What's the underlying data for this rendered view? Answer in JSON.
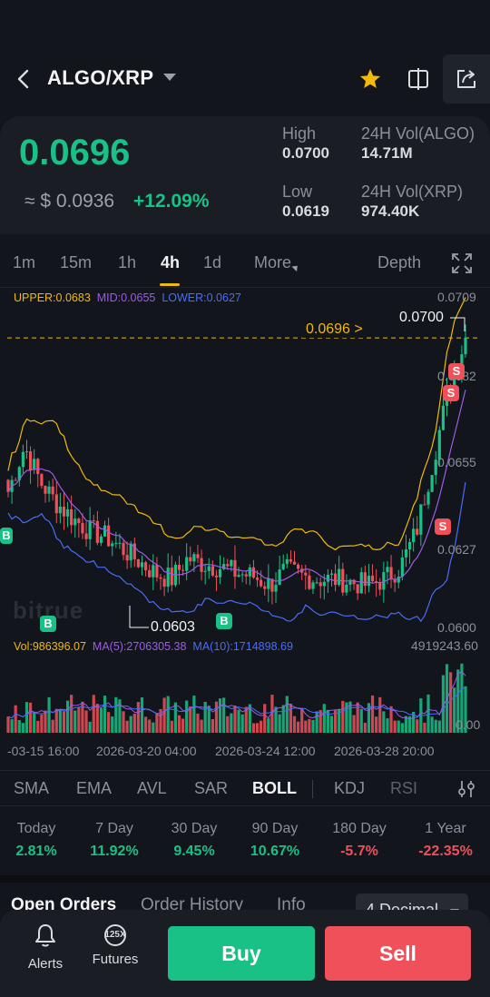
{
  "header": {
    "pair": "ALGO/XRP",
    "icons": [
      "back-arrow-icon",
      "chevron-down-icon",
      "star-icon",
      "compare-icon",
      "share-icon"
    ],
    "favorite_color": "#f0b90b"
  },
  "ticker": {
    "last_price": "0.0696",
    "usd_price": "≈ $ 0.0936",
    "change": "+12.09%",
    "high_label": "High",
    "high_value": "0.0700",
    "low_label": "Low",
    "low_value": "0.0619",
    "vol_base_label": "24H Vol(ALGO)",
    "vol_base_value": "14.71M",
    "vol_quote_label": "24H Vol(XRP)",
    "vol_quote_value": "974.40K",
    "up_color": "#19c187",
    "down_color": "#f0505a"
  },
  "timeframes": {
    "items": [
      "1m",
      "15m",
      "1h",
      "4h",
      "1d"
    ],
    "active": "4h",
    "more": "More",
    "depth": "Depth"
  },
  "chart": {
    "boll_upper": "UPPER:0.0683",
    "boll_mid": "MID:0.0655",
    "boll_lower": "LOWER:0.0627",
    "price_axis": [
      "0.0709",
      "0.0682",
      "0.0655",
      "0.0627",
      "0.0600"
    ],
    "current_price_tag": "0.0696 >",
    "high_marker": "0.0700",
    "low_marker": "0.0603",
    "vol_label": "Vol:986396.07",
    "ma5_label": "MA(5):2706305.38",
    "ma10_label": "MA(10):1714898.69",
    "vol_axis_top": "4919243.60",
    "vol_axis_bottom": "0.00",
    "time_axis": [
      "-03-15 16:00",
      "2026-03-20 04:00",
      "2026-03-24 12:00",
      "2026-03-28 20:00"
    ],
    "watermark": "bitrue",
    "buy_marker": "B",
    "sell_marker": "S",
    "colors": {
      "upper": "#f0b90b",
      "mid": "#9b5de5",
      "lower": "#4a6cf7",
      "ma5": "#9b5de5",
      "ma10": "#4a6cf7"
    }
  },
  "chart_data": {
    "type": "candlestick",
    "x": [
      "2026-03-15 16:00",
      "2026-03-20 04:00",
      "2026-03-24 12:00",
      "2026-03-28 20:00"
    ],
    "ylim": [
      0.06,
      0.0709
    ],
    "close_series": [
      0.0645,
      0.066,
      0.0648,
      0.0641,
      0.0636,
      0.0632,
      0.063,
      0.0626,
      0.0622,
      0.0618,
      0.0616,
      0.0623,
      0.0621,
      0.062,
      0.0618,
      0.0617,
      0.0614,
      0.0619,
      0.0617,
      0.0616,
      0.0616,
      0.0615,
      0.0614,
      0.0616,
      0.062,
      0.0632,
      0.0655,
      0.068,
      0.0696
    ],
    "last": 0.0696,
    "high": 0.07,
    "low": 0.0603
  },
  "indicators": {
    "items": [
      "SMA",
      "EMA",
      "AVL",
      "SAR",
      "BOLL",
      "KDJ",
      "RSI"
    ],
    "active": "BOLL"
  },
  "performance": [
    {
      "label": "Today",
      "value": "2.81%",
      "dir": "pos"
    },
    {
      "label": "7 Day",
      "value": "11.92%",
      "dir": "pos"
    },
    {
      "label": "30 Day",
      "value": "9.45%",
      "dir": "pos"
    },
    {
      "label": "90 Day",
      "value": "10.67%",
      "dir": "pos"
    },
    {
      "label": "180 Day",
      "value": "-5.7%",
      "dir": "neg"
    },
    {
      "label": "1 Year",
      "value": "-22.35%",
      "dir": "neg"
    }
  ],
  "orders": {
    "tabs": [
      "Open Orders",
      "Order History",
      "Info"
    ],
    "decimal": "4 Decimal"
  },
  "bottom_nav": {
    "alerts": "Alerts",
    "futures": "Futures",
    "futures_badge": "125X",
    "buy": "Buy",
    "sell": "Sell"
  }
}
